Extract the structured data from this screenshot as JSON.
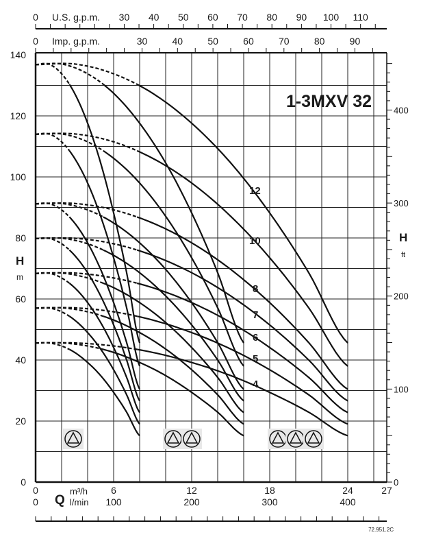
{
  "chart_data": {
    "type": "line",
    "title": "1-3MXV 32",
    "code": "72.951.2C",
    "grid": true,
    "x_axis": {
      "symbol": "Q",
      "unit_primary": "m³/h",
      "unit_secondary": "l/min",
      "range": [
        0,
        27
      ],
      "ticks_primary": [
        "0",
        "6",
        "12",
        "18",
        "24",
        "27"
      ],
      "ticks_secondary": [
        "0",
        "100",
        "200",
        "300",
        "400"
      ]
    },
    "top_axes": {
      "us_label": "U.S. g.p.m.",
      "us_ticks": [
        "0",
        "30",
        "40",
        "50",
        "60",
        "70",
        "80",
        "90",
        "100",
        "110"
      ],
      "imp_label": "Imp. g.p.m.",
      "imp_ticks": [
        "0",
        "30",
        "40",
        "50",
        "60",
        "70",
        "80",
        "90"
      ]
    },
    "y_axis_left": {
      "symbol": "H",
      "unit": "m",
      "range": [
        0,
        140
      ],
      "ticks": [
        "0",
        "20",
        "40",
        "60",
        "80",
        "100",
        "120",
        "140"
      ]
    },
    "y_axis_right": {
      "symbol": "H",
      "unit": "ft",
      "ticks": [
        "0",
        "100",
        "200",
        "300",
        "400"
      ]
    },
    "curve_labels": [
      "12",
      "10",
      "8",
      "7",
      "6",
      "5",
      "4"
    ],
    "pump_groups": [
      1,
      2,
      3
    ],
    "stage_curves_per_pump": {
      "q": [
        0,
        1,
        2,
        3,
        4,
        5,
        6,
        7,
        8
      ],
      "dashed_below_q": 2.6,
      "head_by_stages": {
        "4": [
          45.6,
          45.6,
          44.6,
          42.5,
          39.2,
          34.9,
          29.4,
          22.9,
          15.2
        ],
        "5": [
          57.0,
          57.1,
          55.8,
          53.1,
          49.0,
          43.6,
          36.8,
          28.6,
          19.0
        ],
        "6": [
          68.4,
          68.5,
          66.9,
          63.7,
          58.8,
          52.3,
          44.1,
          34.3,
          22.8
        ],
        "7": [
          79.8,
          79.9,
          78.1,
          74.3,
          68.6,
          61.0,
          51.5,
          40.0,
          26.6
        ],
        "8": [
          91.2,
          91.3,
          89.2,
          84.9,
          78.4,
          69.7,
          58.8,
          45.7,
          30.4
        ],
        "10": [
          114.0,
          114.1,
          111.5,
          106.1,
          98.0,
          87.1,
          73.5,
          57.1,
          38.0
        ],
        "12": [
          136.8,
          137.0,
          133.8,
          127.4,
          117.6,
          104.6,
          88.2,
          68.6,
          45.6
        ]
      }
    }
  }
}
